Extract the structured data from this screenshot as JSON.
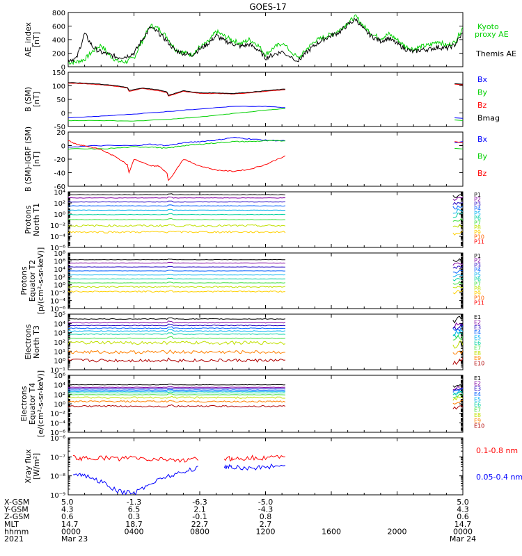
{
  "title": "GOES-17",
  "chart_data": [
    {
      "type": "line",
      "ylabel": "AE_index\n[nT]",
      "ylim": [
        0,
        800
      ],
      "yticks": [
        0,
        200,
        400,
        600,
        800
      ],
      "ytick_labels": [
        "0",
        "200",
        "400",
        "600",
        "800"
      ],
      "legend": [
        "Kyoto\nproxy AE",
        "Themis AE"
      ],
      "series": [
        {
          "name": "Kyoto proxy AE",
          "color": "#00d000",
          "x": [
            0.0,
            0.5,
            1.0,
            1.5,
            2.0,
            2.5,
            3.0,
            3.5,
            4.0,
            4.5,
            5.0,
            5.5,
            6.0,
            6.5,
            7.0,
            7.5,
            8.0,
            8.5,
            9.0,
            9.5,
            10.0,
            10.5,
            11.0,
            11.5,
            12.0,
            12.5,
            13.0,
            14.0,
            14.5,
            15.0,
            15.5,
            16.0,
            16.5,
            17.0,
            17.5,
            18.0,
            18.5,
            19.0,
            19.5,
            20.0,
            20.5,
            21.0,
            21.5,
            22.0,
            22.5,
            23.0,
            23.5,
            24.0
          ],
          "y": [
            60,
            70,
            110,
            230,
            320,
            170,
            80,
            70,
            130,
            380,
            610,
            560,
            440,
            260,
            210,
            180,
            290,
            360,
            520,
            450,
            390,
            340,
            400,
            330,
            180,
            280,
            350,
            120,
            260,
            380,
            430,
            480,
            540,
            650,
            740,
            590,
            480,
            420,
            480,
            400,
            300,
            260,
            300,
            320,
            380,
            310,
            360,
            580
          ]
        },
        {
          "name": "Themis AE",
          "color": "#000000",
          "x": [
            0.0,
            0.5,
            1.0,
            1.5,
            2.0,
            2.5,
            3.0,
            3.5,
            4.0,
            4.5,
            5.0,
            5.5,
            6.0,
            6.5,
            7.0,
            7.5,
            8.0,
            8.5,
            9.0,
            9.5,
            10.0,
            10.5,
            11.0,
            11.5,
            12.0,
            12.5,
            13.0,
            14.0,
            14.5,
            15.0,
            15.5,
            16.0,
            16.5,
            17.0,
            17.5,
            18.0,
            18.5,
            19.0,
            19.5,
            20.0,
            20.5,
            21.0,
            21.5,
            22.0,
            22.5,
            23.0,
            23.5,
            24.0
          ],
          "y": [
            100,
            120,
            490,
            290,
            210,
            180,
            140,
            150,
            200,
            400,
            580,
            500,
            380,
            240,
            200,
            170,
            260,
            340,
            460,
            380,
            340,
            300,
            330,
            260,
            130,
            180,
            220,
            90,
            210,
            320,
            400,
            460,
            510,
            620,
            700,
            540,
            440,
            380,
            420,
            340,
            260,
            220,
            250,
            260,
            290,
            270,
            320,
            500
          ]
        }
      ]
    },
    {
      "type": "line",
      "ylabel": "B (SM)\n[nT]",
      "ylim": [
        -50,
        150
      ],
      "yticks": [
        -50,
        0,
        50,
        100,
        150
      ],
      "ytick_labels": [
        "-50",
        "0",
        "50",
        "100",
        "150"
      ],
      "legend": [
        "Bx",
        "By",
        "Bz",
        "Bmag"
      ],
      "series": [
        {
          "name": "Bx",
          "color": "#0000ff",
          "x": [
            0,
            2,
            4,
            6,
            8,
            10,
            12,
            13.2
          ],
          "y": [
            -18,
            -12,
            -4,
            5,
            15,
            24,
            24,
            20
          ],
          "x2": [
            23.5,
            24
          ],
          "y2": [
            -18,
            -20
          ]
        },
        {
          "name": "By",
          "color": "#00d000",
          "x": [
            0,
            2,
            4,
            6,
            8,
            10,
            12,
            13.2
          ],
          "y": [
            -28,
            -28,
            -30,
            -24,
            -15,
            -2,
            10,
            16
          ],
          "x2": [
            23.5,
            24
          ],
          "y2": [
            -26,
            -28
          ]
        },
        {
          "name": "Bz",
          "color": "#ff0000",
          "x": [
            0,
            1,
            2,
            3,
            3.6,
            3.7,
            4.5,
            5.5,
            6.0,
            6.1,
            7,
            8,
            9,
            10,
            11,
            12,
            13.2
          ],
          "y": [
            110,
            108,
            104,
            98,
            92,
            80,
            90,
            82,
            75,
            62,
            80,
            72,
            72,
            70,
            74,
            80,
            86
          ],
          "x2": [
            23.5,
            24
          ],
          "y2": [
            106,
            104
          ]
        },
        {
          "name": "Bmag",
          "color": "#000000",
          "x": [
            0,
            1,
            2,
            3,
            3.6,
            3.7,
            4.5,
            5.5,
            6.0,
            6.1,
            7,
            8,
            9,
            10,
            11,
            12,
            13.2
          ],
          "y": [
            112,
            110,
            106,
            100,
            94,
            83,
            92,
            85,
            78,
            65,
            82,
            74,
            74,
            72,
            76,
            82,
            88
          ],
          "x2": [
            23.5,
            24
          ],
          "y2": [
            108,
            106
          ]
        }
      ]
    },
    {
      "type": "line",
      "ylabel": "B (SM)-IGRF (SM)\n[nT]",
      "ylim": [
        -60,
        20
      ],
      "yticks": [
        -60,
        -40,
        -20,
        0,
        20
      ],
      "ytick_labels": [
        "-60",
        "-40",
        "-20",
        "0",
        "20"
      ],
      "legend": [
        "Bx",
        "By",
        "Bz"
      ],
      "series": [
        {
          "name": "Bx",
          "color": "#0000ff",
          "x": [
            0,
            2,
            4,
            5,
            6,
            7,
            8,
            9,
            10,
            11,
            12,
            13.2
          ],
          "y": [
            -2,
            0,
            0,
            2,
            0,
            4,
            6,
            8,
            12,
            10,
            8,
            7
          ],
          "x2": [
            23.5,
            24
          ],
          "y2": [
            4,
            6
          ]
        },
        {
          "name": "By",
          "color": "#00d000",
          "x": [
            0,
            2,
            4,
            5,
            6,
            7,
            8,
            9,
            10,
            11,
            12,
            13.2
          ],
          "y": [
            -5,
            -5,
            -2,
            -2,
            -4,
            0,
            2,
            4,
            6,
            6,
            7,
            7
          ],
          "x2": [
            23.5,
            24
          ],
          "y2": [
            -4,
            -5
          ]
        },
        {
          "name": "Bz",
          "color": "#ff0000",
          "x": [
            0,
            0.5,
            1,
            2,
            3,
            3.6,
            3.7,
            4,
            5,
            5.5,
            6.0,
            6.1,
            7,
            8,
            9,
            10,
            11,
            12,
            13.2
          ],
          "y": [
            8,
            2,
            0,
            -6,
            -18,
            -28,
            -40,
            -20,
            -30,
            -30,
            -40,
            -52,
            -20,
            -30,
            -36,
            -38,
            -35,
            -28,
            -15
          ],
          "x2": [
            23.5,
            24
          ],
          "y2": [
            6,
            4
          ]
        }
      ]
    },
    {
      "type": "line",
      "ylabel": "Protons\nNorth T1",
      "ylim": [
        1e-06,
        10000.0
      ],
      "yscale": "log",
      "yticks": [
        1e-06,
        0.0001,
        0.01,
        1,
        100.0,
        10000.0
      ],
      "ytick_labels": [
        "10⁻⁶",
        "10⁻⁴",
        "10⁻²",
        "10⁰",
        "10²",
        "10⁴"
      ],
      "legend": [
        "P1",
        "P2",
        "P3",
        "P4",
        "P5",
        "P6",
        "P7",
        "P8",
        "P9",
        "P10",
        "P11"
      ],
      "series": [
        {
          "name": "P1",
          "color": "#000000",
          "level": 3000
        },
        {
          "name": "P2",
          "color": "#8000a0",
          "level": 800
        },
        {
          "name": "P3",
          "color": "#2000c0",
          "level": 150
        },
        {
          "name": "P4",
          "color": "#0060ff",
          "level": 30
        },
        {
          "name": "P5",
          "color": "#00b0f0",
          "level": 5
        },
        {
          "name": "P6",
          "color": "#00d0a0",
          "level": 0.8
        },
        {
          "name": "P7",
          "color": "#40e040",
          "level": 0.1
        },
        {
          "name": "P8",
          "color": "#c0e000",
          "level": 0.008
        },
        {
          "name": "P9",
          "color": "#ffd000",
          "level": 0.0006
        },
        {
          "name": "P10",
          "color": "#ff6000",
          "level": null
        },
        {
          "name": "P11",
          "color": "#ff0000",
          "level": null
        }
      ]
    },
    {
      "type": "line",
      "ylabel": "Protons\nEquator T2\n[p/(cm²-s-sr-keV)]",
      "ylim": [
        1e-06,
        100000000.0
      ],
      "yscale": "log",
      "yticks": [
        1e-06,
        0.0001,
        0.01,
        1,
        100.0,
        10000.0,
        1000000.0,
        100000000.0
      ],
      "ytick_labels": [
        "10⁻⁶",
        "10⁻⁴",
        "10⁻²",
        "10⁰",
        "10²",
        "10⁴",
        "10⁶",
        "10⁸"
      ],
      "legend": [
        "P1",
        "P2",
        "P3",
        "P4",
        "P5",
        "P6",
        "P7",
        "P8",
        "P9",
        "P10",
        "P11"
      ],
      "series": [
        {
          "name": "P1",
          "color": "#000000",
          "level": 2000000.0
        },
        {
          "name": "P2",
          "color": "#8000a0",
          "level": 300000.0
        },
        {
          "name": "P3",
          "color": "#2000c0",
          "level": 30000.0
        },
        {
          "name": "P4",
          "color": "#0060ff",
          "level": 3000
        },
        {
          "name": "P5",
          "color": "#00b0f0",
          "level": 300
        },
        {
          "name": "P6",
          "color": "#00d0a0",
          "level": 30
        },
        {
          "name": "P7",
          "color": "#40e040",
          "level": 3
        },
        {
          "name": "P8",
          "color": "#c0e000",
          "level": 0.3
        },
        {
          "name": "P9",
          "color": "#ffd000",
          "level": 0.02
        },
        {
          "name": "P10",
          "color": "#ff6000",
          "level": null
        },
        {
          "name": "P11",
          "color": "#ff0000",
          "level": null
        }
      ]
    },
    {
      "type": "line",
      "ylabel": "Electrons\nNorth T3",
      "ylim": [
        0.1,
        100000.0
      ],
      "yscale": "log",
      "yticks": [
        0.1,
        1,
        10,
        100,
        1000,
        10000,
        100000
      ],
      "ytick_labels": [
        "10⁻¹",
        "10⁰",
        "10¹",
        "10²",
        "10³",
        "10⁴",
        "10⁵"
      ],
      "legend": [
        "E1",
        "E2",
        "E3",
        "E4",
        "E5",
        "E6",
        "E7",
        "E8",
        "E9",
        "E10"
      ],
      "series": [
        {
          "name": "E1",
          "color": "#000000",
          "level": 30000
        },
        {
          "name": "E2",
          "color": "#8000a0",
          "level": 12000
        },
        {
          "name": "E3",
          "color": "#2000c0",
          "level": 6000
        },
        {
          "name": "E4",
          "color": "#0060ff",
          "level": 3000
        },
        {
          "name": "E5",
          "color": "#00b0f0",
          "level": 1500
        },
        {
          "name": "E6",
          "color": "#00d0a0",
          "level": 700
        },
        {
          "name": "E7",
          "color": "#40e040",
          "level": 250
        },
        {
          "name": "E8",
          "color": "#c0e000",
          "level": 80
        },
        {
          "name": "E9",
          "color": "#ff8000",
          "level": 8
        },
        {
          "name": "E10",
          "color": "#b00000",
          "level": 1
        }
      ]
    },
    {
      "type": "line",
      "ylabel": "Electrons\nEquator T4\n[e/(cm²-s-sr-keV)]",
      "ylim": [
        1e-06,
        1000000.0
      ],
      "yscale": "log",
      "yticks": [
        1e-06,
        0.0001,
        0.01,
        1,
        100.0,
        10000.0,
        1000000.0
      ],
      "ytick_labels": [
        "10⁻⁶",
        "10⁻⁴",
        "10⁻²",
        "10⁰",
        "10²",
        "10⁴",
        "10⁶"
      ],
      "legend": [
        "E1",
        "E2",
        "E3",
        "E4",
        "E5",
        "E6",
        "E7",
        "E8",
        "E9",
        "E10"
      ],
      "series": [
        {
          "name": "E1",
          "color": "#000000",
          "level": 10000
        },
        {
          "name": "E2",
          "color": "#8000a0",
          "level": 3000
        },
        {
          "name": "E3",
          "color": "#2000c0",
          "level": 1500
        },
        {
          "name": "E4",
          "color": "#0060ff",
          "level": 800
        },
        {
          "name": "E5",
          "color": "#00b0f0",
          "level": 400
        },
        {
          "name": "E6",
          "color": "#00d0a0",
          "level": 200
        },
        {
          "name": "E7",
          "color": "#40e040",
          "level": 80
        },
        {
          "name": "E8",
          "color": "#c0e000",
          "level": 20
        },
        {
          "name": "E9",
          "color": "#ff8000",
          "level": 3
        },
        {
          "name": "E10",
          "color": "#b00000",
          "level": 0.3
        }
      ]
    },
    {
      "type": "line",
      "ylabel": "Xray flux\n[W/m²]",
      "ylim": [
        1e-09,
        1e-06
      ],
      "yscale": "log",
      "yticks": [
        1e-09,
        1e-08,
        1e-07,
        1e-06
      ],
      "ytick_labels": [
        "10⁻⁹",
        "10⁻⁸",
        "10⁻⁷",
        "10⁻⁶"
      ],
      "legend": [
        "0.1-0.8 nm",
        "0.05-0.4 nm"
      ],
      "series": [
        {
          "name": "0.1-0.8 nm",
          "color": "#ff0000",
          "x": [
            0.3,
            1,
            2,
            3,
            4,
            5,
            6,
            7,
            8,
            9,
            9.5,
            10,
            11,
            12,
            13.2
          ],
          "y": [
            9e-08,
            8e-08,
            9e-08,
            8e-08,
            9e-08,
            7e-08,
            8e-08,
            6e-08,
            8e-08,
            null,
            8e-08,
            8e-08,
            9e-08,
            9e-08,
            1e-07
          ]
        },
        {
          "name": "0.05-0.4 nm",
          "color": "#0000ff",
          "x": [
            0.3,
            1,
            2,
            3,
            4,
            5,
            6,
            7,
            8,
            9,
            9.5,
            10,
            11,
            12,
            13.2
          ],
          "y": [
            1.5e-08,
            1e-08,
            5e-09,
            1.5e-09,
            1.2e-09,
            4e-09,
            1e-08,
            1.5e-08,
            3e-08,
            null,
            3e-08,
            3e-08,
            2.5e-08,
            3e-08,
            3.5e-08
          ]
        }
      ]
    }
  ],
  "x_axis": {
    "range_hours": [
      0,
      24
    ],
    "rows": [
      {
        "label": "X-GSM",
        "values": [
          "5.0",
          "-1.3",
          "-6.3",
          "-5.0",
          "",
          "",
          "5.0"
        ]
      },
      {
        "label": "Y-GSM",
        "values": [
          "4.3",
          "6.5",
          "2.1",
          "-4.3",
          "",
          "",
          "4.3"
        ]
      },
      {
        "label": "Z-GSM",
        "values": [
          "0.6",
          "0.3",
          "-0.1",
          "0.8",
          "",
          "",
          "0.6"
        ]
      },
      {
        "label": "MLT",
        "values": [
          "14.7",
          "18.7",
          "22.7",
          "2.7",
          "",
          "",
          "14.7"
        ]
      },
      {
        "label": "hhmm",
        "values": [
          "0000",
          "0400",
          "0800",
          "1200",
          "1600",
          "2000",
          "0000"
        ]
      },
      {
        "label": "2021",
        "values": [
          "Mar 23",
          "",
          "",
          "",
          "",
          "",
          "Mar 24"
        ]
      }
    ],
    "tick_hours": [
      0,
      4,
      8,
      12,
      16,
      20,
      24
    ]
  }
}
